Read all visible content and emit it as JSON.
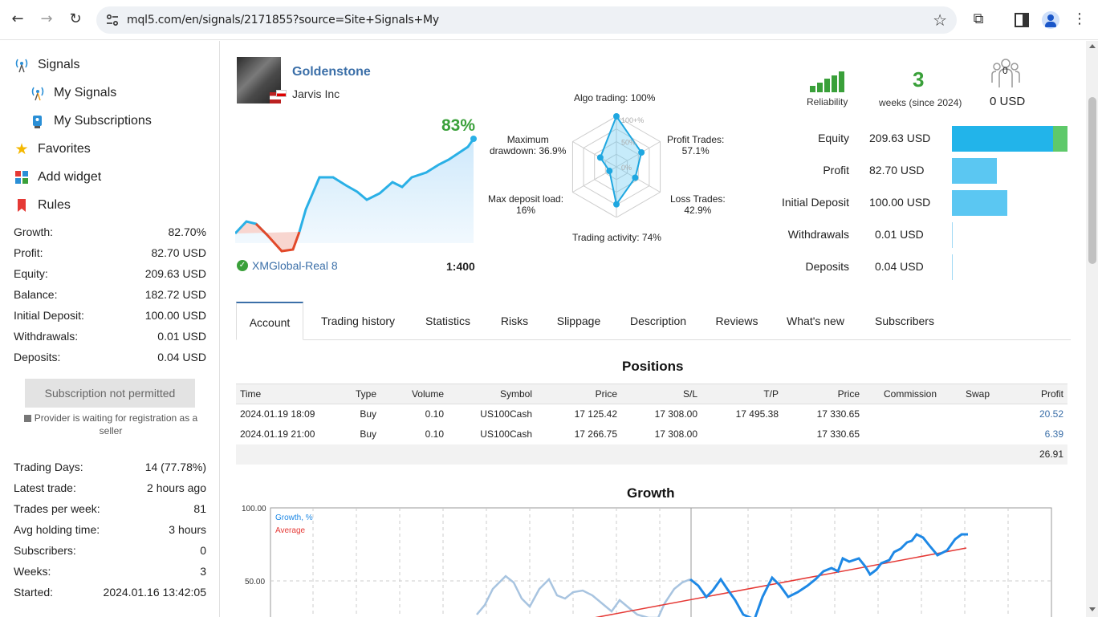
{
  "browser": {
    "url": "mql5.com/en/signals/2171855?source=Site+Signals+My",
    "back_glyph": "←",
    "forward_glyph": "→",
    "reload_glyph": "↻",
    "star_glyph": "☆",
    "ext_glyph": "⧉",
    "menu_glyph": "⋮"
  },
  "sidebar": {
    "nav": [
      {
        "label": "Signals",
        "icon": "signal-tower-icon"
      },
      {
        "label": "My Signals",
        "icon": "signal-tower-icon"
      },
      {
        "label": "My Subscriptions",
        "icon": "subscriptions-icon"
      },
      {
        "label": "Favorites",
        "icon": "star-icon"
      },
      {
        "label": "Add widget",
        "icon": "widget-icon"
      },
      {
        "label": "Rules",
        "icon": "bookmark-icon"
      }
    ],
    "stats": [
      {
        "label": "Growth:",
        "value": "82.70%"
      },
      {
        "label": "Profit:",
        "value": "82.70 USD"
      },
      {
        "label": "Equity:",
        "value": "209.63 USD"
      },
      {
        "label": "Balance:",
        "value": "182.72 USD"
      },
      {
        "label": "Initial Deposit:",
        "value": "100.00 USD"
      },
      {
        "label": "Withdrawals:",
        "value": "0.01 USD"
      },
      {
        "label": "Deposits:",
        "value": "0.04 USD"
      }
    ],
    "subscribe_button": "Subscription not permitted",
    "provider_note": "Provider is waiting for registration as a seller",
    "stats2": [
      {
        "label": "Trading Days:",
        "value": "14 (77.78%)"
      },
      {
        "label": "Latest trade:",
        "value": "2 hours ago"
      },
      {
        "label": "Trades per week:",
        "value": "81"
      },
      {
        "label": "Avg holding time:",
        "value": "3 hours"
      },
      {
        "label": "Subscribers:",
        "value": "0"
      },
      {
        "label": "Weeks:",
        "value": "3"
      },
      {
        "label": "Started:",
        "value": "2024.01.16 13:42:05"
      }
    ]
  },
  "signal": {
    "name": "Goldenstone",
    "company": "Jarvis Inc",
    "growth_pct": "83%",
    "broker": "XMGlobal-Real 8",
    "leverage": "1:400",
    "radar": {
      "algo": "Algo trading: 100%",
      "profit_trades": [
        "Profit Trades:",
        "57.1%"
      ],
      "loss_trades": [
        "Loss Trades:",
        "42.9%"
      ],
      "activity": "Trading activity: 74%",
      "deposit_load": [
        "Max deposit load:",
        "16%"
      ],
      "drawdown": [
        "Maximum",
        "drawdown: 36.9%"
      ],
      "ring_labels": [
        "100+%",
        "50%",
        "0%"
      ],
      "values": {
        "algo": 1.0,
        "profit_trades": 0.571,
        "loss_trades": 0.429,
        "activity": 0.74,
        "deposit_load": 0.16,
        "drawdown": 0.369
      }
    },
    "reliability_label": "Reliability",
    "reliability_bars": 5,
    "weeks": "3",
    "weeks_label": "weeks (since 2024)",
    "subscribers_count": "0",
    "subscribers_usd": "0 USD",
    "accounts": [
      {
        "label": "Equity",
        "value": "209.63 USD",
        "fill": 1.0,
        "extra_fill": 0.11
      },
      {
        "label": "Profit",
        "value": "82.70 USD",
        "fill": 0.39
      },
      {
        "label": "Initial Deposit",
        "value": "100.00 USD",
        "fill": 0.48
      },
      {
        "label": "Withdrawals",
        "value": "0.01 USD",
        "fill": 0.0
      },
      {
        "label": "Deposits",
        "value": "0.04 USD",
        "fill": 0.0
      }
    ]
  },
  "tabs": [
    "Account",
    "Trading history",
    "Statistics",
    "Risks",
    "Slippage",
    "Description",
    "Reviews",
    "What's new",
    "Subscribers"
  ],
  "positions": {
    "title": "Positions",
    "headers": [
      "Time",
      "Type",
      "Volume",
      "Symbol",
      "Price",
      "S/L",
      "T/P",
      "Price",
      "Commission",
      "Swap",
      "Profit"
    ],
    "rows": [
      [
        "2024.01.19 18:09",
        "Buy",
        "0.10",
        "US100Cash",
        "17 125.42",
        "17 308.00",
        "17 495.38",
        "17 330.65",
        "",
        "",
        "20.52"
      ],
      [
        "2024.01.19 21:00",
        "Buy",
        "0.10",
        "US100Cash",
        "17 266.75",
        "17 308.00",
        "",
        "17 330.65",
        "",
        "",
        "6.39"
      ]
    ],
    "total": "26.91"
  },
  "growth": {
    "title": "Growth",
    "legend": [
      "Growth, %",
      "Average"
    ],
    "y_ticks": [
      "100.00",
      "50.00"
    ]
  },
  "colors": {
    "accent": "#3b6fa8",
    "green": "#3aa03a",
    "bar": "#5bc7f2",
    "line": "#1e88e5",
    "avg": "#e53935"
  }
}
